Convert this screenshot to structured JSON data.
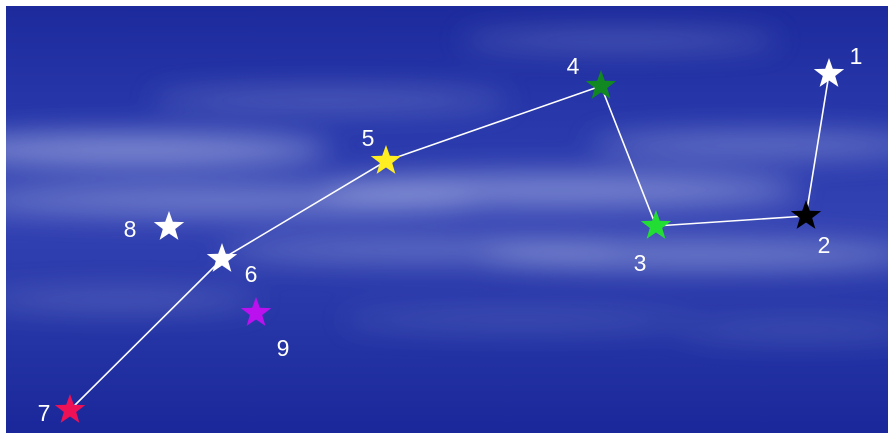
{
  "stars": [
    {
      "label": "1",
      "color": "#ffffff"
    },
    {
      "label": "2",
      "color": "#000000"
    },
    {
      "label": "3",
      "color": "#22dd33"
    },
    {
      "label": "4",
      "color": "#118822"
    },
    {
      "label": "5",
      "color": "#ffee22"
    },
    {
      "label": "6",
      "color": "#ffffff"
    },
    {
      "label": "7",
      "color": "#ee1155"
    },
    {
      "label": "8",
      "color": "#ffffff"
    },
    {
      "label": "9",
      "color": "#bb11ee"
    }
  ],
  "connections": [
    [
      "1",
      "2"
    ],
    [
      "2",
      "3"
    ],
    [
      "3",
      "4"
    ],
    [
      "4",
      "5"
    ],
    [
      "5",
      "6"
    ],
    [
      "6",
      "7"
    ]
  ],
  "colors": {
    "sky": "#2a3aac",
    "line": "#ffffff",
    "label": "#ffffff"
  }
}
